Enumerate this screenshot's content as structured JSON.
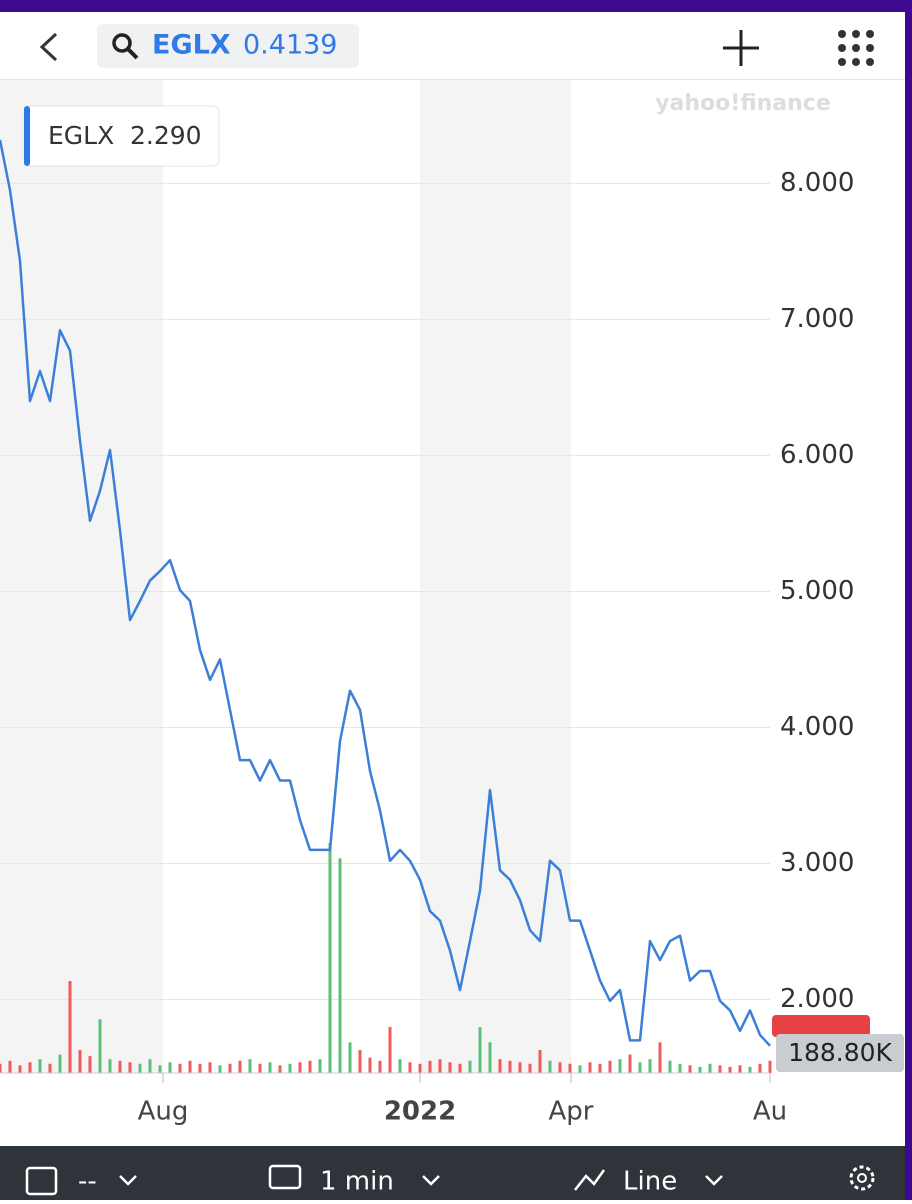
{
  "header": {
    "symbol": "EGLX",
    "price": "0.4139"
  },
  "watermark": "yahoo!finance",
  "chart_data": {
    "type": "line",
    "series": [
      {
        "name": "EGLX",
        "color": "#3b7fd9",
        "values": [
          8.32,
          7.95,
          7.43,
          6.4,
          6.62,
          6.4,
          6.92,
          6.77,
          6.11,
          5.52,
          5.74,
          6.04,
          5.45,
          4.79,
          4.93,
          5.08,
          5.15,
          5.23,
          5.01,
          4.93,
          4.57,
          4.35,
          4.5,
          4.13,
          3.76,
          3.76,
          3.61,
          3.76,
          3.61,
          3.61,
          3.32,
          3.1,
          3.1,
          3.1,
          3.9,
          4.27,
          4.13,
          3.68,
          3.39,
          3.02,
          3.1,
          3.02,
          2.88,
          2.65,
          2.58,
          2.36,
          2.07,
          2.43,
          2.8,
          3.54,
          2.95,
          2.88,
          2.73,
          2.51,
          2.43,
          3.02,
          2.95,
          2.58,
          2.58,
          2.36,
          2.14,
          1.99,
          2.07,
          1.7,
          1.7,
          2.43,
          2.29,
          2.43,
          2.47,
          2.14,
          2.21,
          2.21,
          1.99,
          1.92,
          1.77,
          1.92,
          1.74,
          1.66
        ]
      }
    ],
    "volume": {
      "up_color": "#5cbf7a",
      "down_color": "#ef5b5b",
      "ylim": [
        0,
        1500
      ],
      "values": [
        60,
        80,
        50,
        70,
        90,
        60,
        120,
        600,
        150,
        110,
        350,
        90,
        80,
        70,
        60,
        90,
        50,
        70,
        60,
        80,
        60,
        70,
        50,
        60,
        80,
        90,
        60,
        70,
        50,
        60,
        70,
        80,
        90,
        1500,
        1400,
        200,
        150,
        100,
        80,
        300,
        90,
        70,
        60,
        80,
        90,
        70,
        60,
        80,
        300,
        200,
        90,
        80,
        70,
        60,
        150,
        80,
        70,
        60,
        50,
        70,
        60,
        80,
        90,
        120,
        70,
        90,
        200,
        80,
        60,
        50,
        40,
        60,
        50,
        40,
        50,
        40,
        60,
        80
      ]
    },
    "ylim": [
      1.46,
      8.76
    ],
    "yticks": [
      {
        "value": 2,
        "label": "2.000"
      },
      {
        "value": 3,
        "label": "3.000"
      },
      {
        "value": 4,
        "label": "4.000"
      },
      {
        "value": 5,
        "label": "5.000"
      },
      {
        "value": 6,
        "label": "6.000"
      },
      {
        "value": 7,
        "label": "7.000"
      },
      {
        "value": 8,
        "label": "8.000"
      }
    ],
    "xticks": [
      {
        "value": 16.3,
        "label": "Aug"
      },
      {
        "value": 42,
        "label": "2022"
      },
      {
        "value": 57.1,
        "label": "Apr"
      },
      {
        "value": 77,
        "label": "Au"
      }
    ],
    "tooltip": {
      "name": "EGLX",
      "value": "2.290"
    },
    "volume_label": "188.80K",
    "grid": true
  },
  "toolbar": {
    "range": "--",
    "interval": "1 min",
    "style": "Line"
  }
}
